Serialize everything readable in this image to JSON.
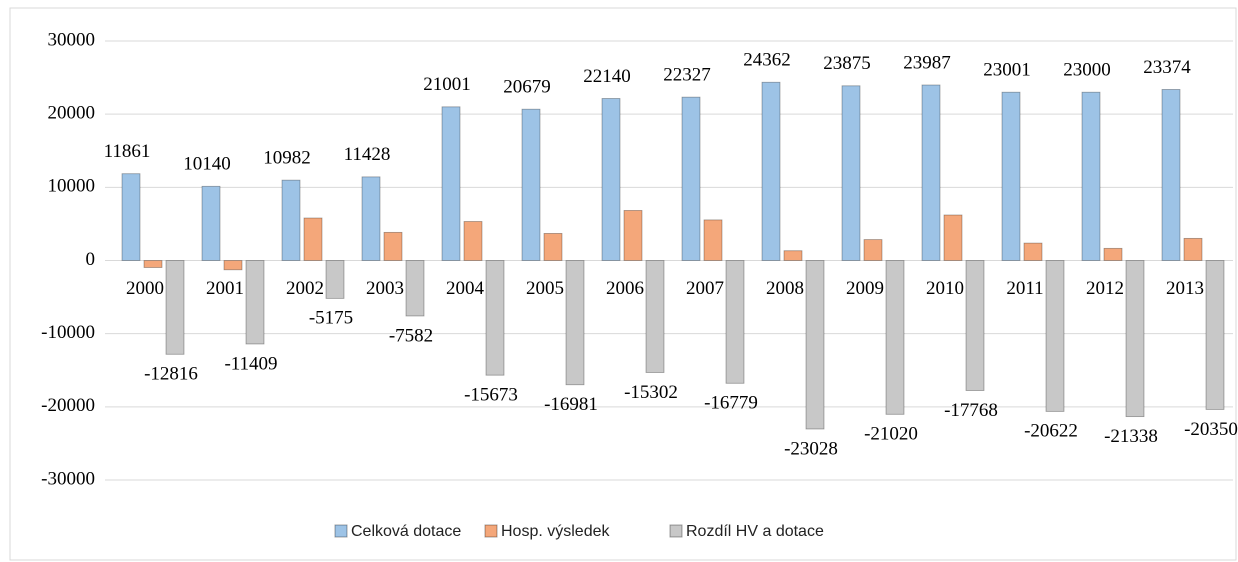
{
  "chart_data": {
    "type": "bar",
    "categories": [
      "2000",
      "2001",
      "2002",
      "2003",
      "2004",
      "2005",
      "2006",
      "2007",
      "2008",
      "2009",
      "2010",
      "2011",
      "2012",
      "2013"
    ],
    "series": [
      {
        "name": "Celková dotace",
        "color": "#9dc3e6",
        "values": [
          11861,
          10140,
          10982,
          11428,
          21001,
          20679,
          22140,
          22327,
          24362,
          23875,
          23987,
          23001,
          23000,
          23374
        ],
        "labels": true
      },
      {
        "name": "Hosp. výsledek",
        "color": "#f4a77a",
        "values": [
          -955,
          -1269,
          5807,
          3846,
          5328,
          3698,
          6838,
          5548,
          1334,
          2855,
          6219,
          2379,
          1662,
          3024
        ],
        "labels": false
      },
      {
        "name": "Rozdíl HV a dotace",
        "color": "#c8c8c8",
        "values": [
          -12816,
          -11409,
          -5175,
          -7582,
          -15673,
          -16981,
          -15302,
          -16779,
          -23028,
          -21020,
          -17768,
          -20622,
          -21338,
          -20350
        ],
        "labels": true
      }
    ],
    "ylim": [
      -30000,
      30000
    ],
    "yticks": [
      -30000,
      -20000,
      -10000,
      0,
      10000,
      20000,
      30000
    ],
    "grid": true,
    "legend": "bottom"
  }
}
